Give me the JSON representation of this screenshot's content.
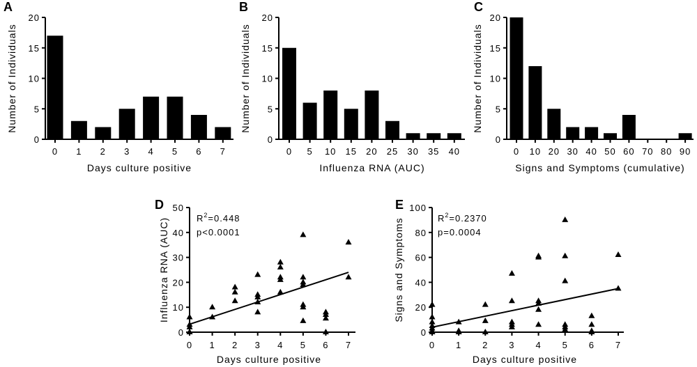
{
  "chart_data": [
    {
      "id": "A",
      "type": "bar",
      "panel_label": "A",
      "categories": [
        "0",
        "1",
        "2",
        "3",
        "4",
        "5",
        "6",
        "7"
      ],
      "values": [
        17,
        3,
        2,
        5,
        7,
        7,
        4,
        2
      ],
      "xlabel": "Days culture positive",
      "ylabel": "Number of Individuals",
      "ylim": [
        0,
        20
      ],
      "yticks": [
        0,
        5,
        10,
        15,
        20
      ]
    },
    {
      "id": "B",
      "type": "bar",
      "panel_label": "B",
      "categories": [
        "0",
        "5",
        "10",
        "15",
        "20",
        "25",
        "30",
        "35",
        "40"
      ],
      "values": [
        15,
        6,
        8,
        5,
        8,
        3,
        1,
        1,
        1
      ],
      "xlabel": "Influenza RNA (AUC)",
      "ylabel": "Number of Individuals",
      "ylim": [
        0,
        20
      ],
      "yticks": [
        0,
        5,
        10,
        15,
        20
      ]
    },
    {
      "id": "C",
      "type": "bar",
      "panel_label": "C",
      "categories": [
        "0",
        "10",
        "20",
        "30",
        "40",
        "50",
        "60",
        "70",
        "80",
        "90"
      ],
      "values": [
        20,
        12,
        5,
        2,
        2,
        1,
        4,
        0,
        0,
        1
      ],
      "xlabel": "Signs and Symptoms (cumulative)",
      "ylabel": "Number of Individuals",
      "ylim": [
        0,
        20
      ],
      "yticks": [
        0,
        5,
        10,
        15,
        20
      ]
    },
    {
      "id": "D",
      "type": "scatter",
      "panel_label": "D",
      "xlabel": "Days culture positive",
      "ylabel": "Influenza RNA (AUC)",
      "xlim": [
        0,
        7
      ],
      "ylim": [
        0,
        50
      ],
      "xticks": [
        0,
        1,
        2,
        3,
        4,
        5,
        6,
        7
      ],
      "yticks": [
        0,
        10,
        20,
        30,
        40,
        50
      ],
      "annotation_r2": "R",
      "annotation_r2_sup": "2",
      "annotation_r2_val": "=0.448",
      "annotation_p": "p<0.0001",
      "points": [
        [
          0,
          6
        ],
        [
          0,
          3
        ],
        [
          0,
          2
        ],
        [
          0,
          0
        ],
        [
          0,
          0
        ],
        [
          1,
          10
        ],
        [
          1,
          6
        ],
        [
          2,
          18
        ],
        [
          2,
          16
        ],
        [
          2,
          12.5
        ],
        [
          3,
          23
        ],
        [
          3,
          15
        ],
        [
          3,
          14
        ],
        [
          3,
          12
        ],
        [
          3,
          8
        ],
        [
          4,
          28
        ],
        [
          4,
          26
        ],
        [
          4,
          22
        ],
        [
          4,
          21
        ],
        [
          4,
          16
        ],
        [
          5,
          39
        ],
        [
          5,
          22
        ],
        [
          5,
          20
        ],
        [
          5,
          19
        ],
        [
          5,
          11
        ],
        [
          5,
          10
        ],
        [
          5,
          4.5
        ],
        [
          6,
          8
        ],
        [
          6,
          7
        ],
        [
          6,
          5.5
        ],
        [
          6,
          0
        ],
        [
          7,
          36
        ],
        [
          7,
          22
        ]
      ],
      "fit_line": [
        [
          0,
          3.2
        ],
        [
          7,
          24
        ]
      ]
    },
    {
      "id": "E",
      "type": "scatter",
      "panel_label": "E",
      "xlabel": "Days culture positive",
      "ylabel": "Signs and Symptoms",
      "xlim": [
        0,
        7
      ],
      "ylim": [
        0,
        100
      ],
      "xticks": [
        0,
        1,
        2,
        3,
        4,
        5,
        6,
        7
      ],
      "yticks": [
        0,
        20,
        40,
        60,
        80,
        100
      ],
      "annotation_r2": "R",
      "annotation_r2_sup": "2",
      "annotation_r2_val": "=0.2370",
      "annotation_p": "p=0.0004",
      "points": [
        [
          0,
          22
        ],
        [
          0,
          12
        ],
        [
          0,
          8
        ],
        [
          0,
          5
        ],
        [
          0,
          3
        ],
        [
          0,
          1
        ],
        [
          0,
          0
        ],
        [
          1,
          8
        ],
        [
          1,
          1
        ],
        [
          1,
          0
        ],
        [
          2,
          22
        ],
        [
          2,
          9
        ],
        [
          2,
          0
        ],
        [
          3,
          47
        ],
        [
          3,
          25
        ],
        [
          3,
          8
        ],
        [
          3,
          6
        ],
        [
          3,
          4
        ],
        [
          4,
          61
        ],
        [
          4,
          60
        ],
        [
          4,
          25
        ],
        [
          4,
          23
        ],
        [
          4,
          18
        ],
        [
          4,
          6
        ],
        [
          5,
          90
        ],
        [
          5,
          61
        ],
        [
          5,
          41
        ],
        [
          5,
          6
        ],
        [
          5,
          4
        ],
        [
          5,
          2
        ],
        [
          6,
          13
        ],
        [
          6,
          6
        ],
        [
          6,
          1
        ],
        [
          6,
          0
        ],
        [
          7,
          62
        ],
        [
          7,
          35
        ]
      ],
      "fit_line": [
        [
          0,
          4
        ],
        [
          7,
          35
        ]
      ]
    }
  ]
}
